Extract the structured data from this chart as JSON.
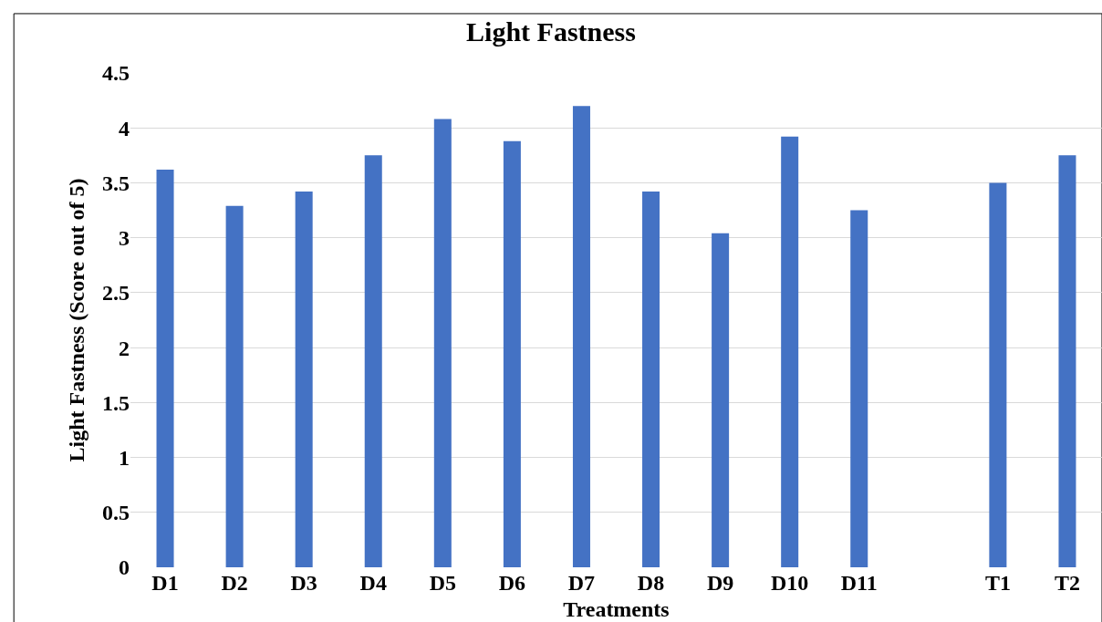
{
  "chart_data": {
    "type": "bar",
    "title": "Light Fastness",
    "xlabel": "Treatments",
    "ylabel": "Light Fastness (Score out of 5)",
    "categories": [
      "D1",
      "D2",
      "D3",
      "D4",
      "D5",
      "D6",
      "D7",
      "D8",
      "D9",
      "D10",
      "D11",
      null,
      "T1",
      "T2"
    ],
    "values": [
      3.62,
      3.29,
      3.42,
      3.75,
      4.08,
      3.88,
      4.2,
      3.42,
      3.04,
      3.92,
      3.25,
      null,
      3.5,
      3.75
    ],
    "color": "#4472c4",
    "ylim": [
      0,
      4.5
    ],
    "yticks": [
      0,
      0.5,
      1,
      1.5,
      2,
      2.5,
      3,
      3.5,
      4,
      4.5
    ],
    "grid": "y"
  }
}
